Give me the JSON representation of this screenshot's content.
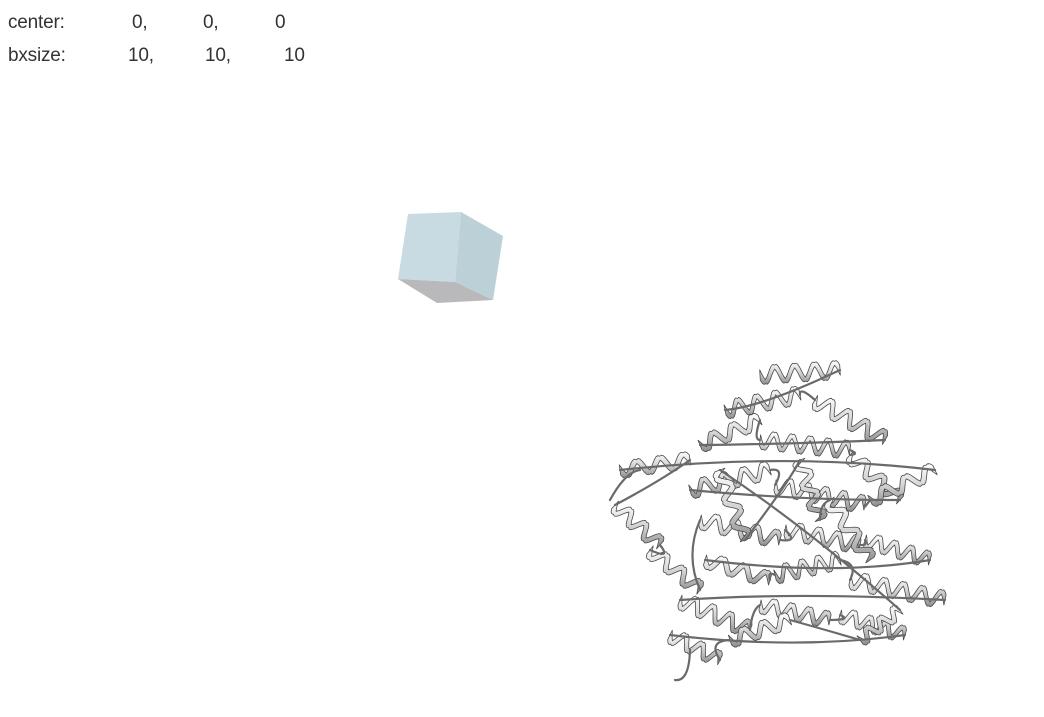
{
  "box_info": {
    "center": {
      "label": "center:",
      "x": "0,",
      "y": "0,",
      "z": "0"
    },
    "bxsize": {
      "label": "bxsize:",
      "x": "10,",
      "y": "10,",
      "z": "10"
    }
  },
  "colors": {
    "background": "#ffffff",
    "text": "#333333",
    "box_face_light": "#c9dbe2",
    "box_face_mid": "#bdd0d8",
    "box_face_dark": "#bdbdbd",
    "ribbon_fill": "#d9d9d9",
    "ribbon_stroke": "#5a5a5a"
  },
  "scene": {
    "objects": [
      "search-box-cube",
      "protein-cartoon"
    ]
  }
}
